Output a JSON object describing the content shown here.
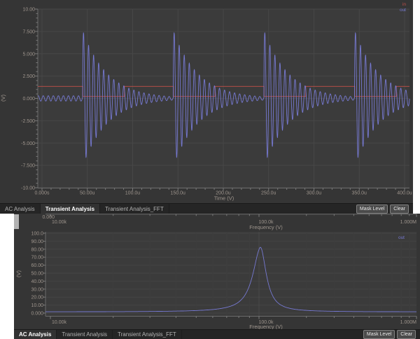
{
  "controls": {
    "mask_level": "Mask Level",
    "clear": "Clear"
  },
  "top_panel": {
    "name": "Transient Analysis",
    "chart_data": {
      "type": "line",
      "xlabel": "Time (V)",
      "ylabel": "(V)",
      "x_ticks": [
        "0.000s",
        "50.00u",
        "100.0u",
        "150.0u",
        "200.0u",
        "250.0u",
        "300.0u",
        "350.0u",
        "400.0u"
      ],
      "y_ticks": [
        "10.00",
        "7.500",
        "5.000",
        "2.500",
        "0.000",
        "-2.500",
        "-5.000",
        "-7.500",
        "-10.00"
      ],
      "xlim_us": [
        0,
        400
      ],
      "ylim": [
        -10,
        10
      ],
      "grid": true,
      "legend_position": "top-right",
      "series": [
        {
          "name": "in",
          "color": "#c24f49",
          "kind": "square_wave",
          "high_v": 1.35,
          "low_v": 0.22,
          "fall_times_us": [
            45,
            145,
            245,
            345
          ],
          "rise_times_us": [
            91,
            191,
            291,
            391
          ],
          "description": "input square wave stepping between 0.22 V and 1.35 V, period 100 us"
        },
        {
          "name": "out",
          "color": "#7679d2",
          "kind": "damped_oscillation_bursts",
          "carrier_freq_khz": 180,
          "burst_times_us": [
            45,
            145,
            245,
            345
          ],
          "burst_peak_v": 7.6,
          "decay_tau_us": 27,
          "idle_amplitude_v": 0.3,
          "description": "ringing output: ~7.5 V decaying oscillation burst triggered every 100 us, decaying to ~0.2 V"
        }
      ]
    },
    "tab_bar": {
      "tabs": [
        {
          "label": "AC Analysis",
          "active": false
        },
        {
          "label": "Transient Analysis",
          "active": true
        },
        {
          "label": "Transient Analysis_FFT",
          "active": false
        }
      ]
    }
  },
  "bottom_panel": {
    "name": "AC Analysis",
    "upper_axis": {
      "y_tick": "0.000",
      "x_ticks": [
        "10.00k",
        "100.0k",
        "1.000M"
      ],
      "title": "Frequency (V)"
    },
    "chart_data": {
      "type": "line",
      "x_scale": "log",
      "xlabel": "Frequency (V)",
      "ylabel": "(V)",
      "x_ticks": [
        "10.00k",
        "100.0k",
        "1.000M"
      ],
      "y_ticks": [
        "100.0",
        "90.00",
        "80.00",
        "70.00",
        "60.00",
        "50.00",
        "40.00",
        "30.00",
        "20.00",
        "10.00",
        "0.000"
      ],
      "xlim_hz": [
        10000,
        1000000
      ],
      "ylim": [
        0,
        100
      ],
      "grid": true,
      "series": [
        {
          "name": "out",
          "color": "#7679d2",
          "kind": "resonance_peak",
          "peak_freq_khz": 102,
          "peak_value": 81,
          "base_value": 1.5,
          "width_decades": 0.045,
          "description": "frequency response magnitude: narrow resonance peak of ~82 near 100 kHz over ~1.5 baseline"
        }
      ]
    },
    "tab_bar": {
      "tabs": [
        {
          "label": "AC Analysis",
          "active": true
        },
        {
          "label": "Transient Analysis",
          "active": false
        },
        {
          "label": "Transient Analysis_FFT",
          "active": false
        }
      ]
    }
  }
}
